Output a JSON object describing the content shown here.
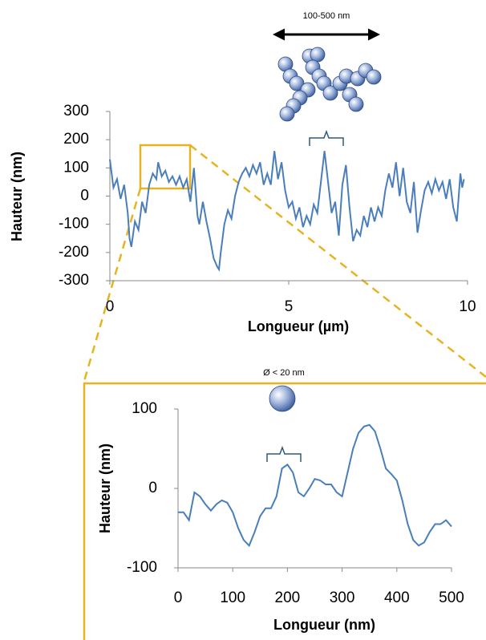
{
  "chart_data": [
    {
      "type": "line",
      "annotation": "100-500 nm",
      "x_label": "Longueur (µm)",
      "y_label": "Hauteur (nm)",
      "color": "#4a7ebb",
      "xlim": [
        0,
        10
      ],
      "ylim": [
        -300,
        300
      ],
      "xticks": [
        0,
        5,
        10
      ],
      "yticks": [
        -300,
        -200,
        -100,
        0,
        100,
        200,
        300
      ],
      "x": [
        0,
        0.1,
        0.2,
        0.3,
        0.4,
        0.5,
        0.55,
        0.6,
        0.7,
        0.8,
        0.9,
        1.0,
        1.1,
        1.2,
        1.3,
        1.35,
        1.45,
        1.55,
        1.65,
        1.75,
        1.85,
        1.95,
        2.05,
        2.15,
        2.25,
        2.35,
        2.45,
        2.5,
        2.6,
        2.7,
        2.8,
        2.9,
        3.0,
        3.05,
        3.1,
        3.2,
        3.3,
        3.4,
        3.5,
        3.6,
        3.7,
        3.8,
        3.9,
        4.0,
        4.1,
        4.2,
        4.3,
        4.4,
        4.5,
        4.6,
        4.7,
        4.8,
        4.9,
        5.0,
        5.1,
        5.2,
        5.3,
        5.4,
        5.5,
        5.6,
        5.7,
        5.8,
        5.9,
        6.0,
        6.1,
        6.2,
        6.3,
        6.4,
        6.5,
        6.6,
        6.7,
        6.8,
        6.9,
        7.0,
        7.1,
        7.2,
        7.3,
        7.4,
        7.5,
        7.6,
        7.7,
        7.8,
        7.9,
        8.0,
        8.1,
        8.2,
        8.3,
        8.4,
        8.5,
        8.6,
        8.7,
        8.8,
        8.9,
        9.0,
        9.1,
        9.2,
        9.3,
        9.4,
        9.5,
        9.6,
        9.7,
        9.8,
        9.85,
        9.9
      ],
      "values": [
        130,
        30,
        60,
        -10,
        40,
        -60,
        -150,
        -180,
        -90,
        -120,
        -20,
        -60,
        40,
        80,
        60,
        120,
        70,
        90,
        50,
        70,
        40,
        70,
        30,
        60,
        -20,
        100,
        -70,
        -100,
        -20,
        -90,
        -150,
        -220,
        -250,
        -260,
        -200,
        -100,
        -50,
        -80,
        0,
        50,
        80,
        100,
        70,
        110,
        80,
        120,
        40,
        80,
        40,
        160,
        60,
        120,
        20,
        -40,
        -20,
        -80,
        -40,
        -110,
        -70,
        -100,
        -30,
        -60,
        50,
        160,
        50,
        -60,
        -20,
        -140,
        40,
        110,
        -40,
        -160,
        -120,
        -140,
        -70,
        -110,
        -40,
        -90,
        -40,
        -70,
        20,
        80,
        30,
        120,
        0,
        100,
        -20,
        -60,
        50,
        -130,
        -50,
        20,
        50,
        10,
        60,
        20,
        50,
        -10,
        60,
        -40,
        -90,
        80,
        30,
        60
      ]
    },
    {
      "type": "line",
      "annotation": "Ø < 20 nm",
      "x_label": "Longueur (nm)",
      "y_label": "Hauteur (nm)",
      "color": "#4a7ebb",
      "xlim": [
        0,
        500
      ],
      "ylim": [
        -100,
        100
      ],
      "xticks": [
        0,
        100,
        200,
        300,
        400,
        500
      ],
      "yticks": [
        -100,
        0,
        100
      ],
      "x": [
        0,
        10,
        20,
        30,
        40,
        50,
        60,
        70,
        80,
        90,
        100,
        110,
        120,
        130,
        140,
        150,
        160,
        170,
        180,
        190,
        200,
        210,
        220,
        230,
        240,
        250,
        260,
        270,
        280,
        290,
        300,
        310,
        320,
        330,
        340,
        350,
        360,
        370,
        380,
        390,
        400,
        410,
        420,
        430,
        440,
        450,
        460,
        470,
        480,
        490,
        500
      ],
      "values": [
        -30,
        -30,
        -40,
        -5,
        -10,
        -20,
        -28,
        -20,
        -15,
        -18,
        -30,
        -50,
        -65,
        -72,
        -55,
        -35,
        -25,
        -25,
        -10,
        25,
        30,
        20,
        -5,
        -10,
        0,
        12,
        10,
        5,
        5,
        -5,
        -10,
        20,
        50,
        70,
        78,
        80,
        72,
        50,
        25,
        18,
        10,
        -15,
        -45,
        -65,
        -72,
        -68,
        -55,
        -45,
        -45,
        -40,
        -48
      ]
    }
  ]
}
